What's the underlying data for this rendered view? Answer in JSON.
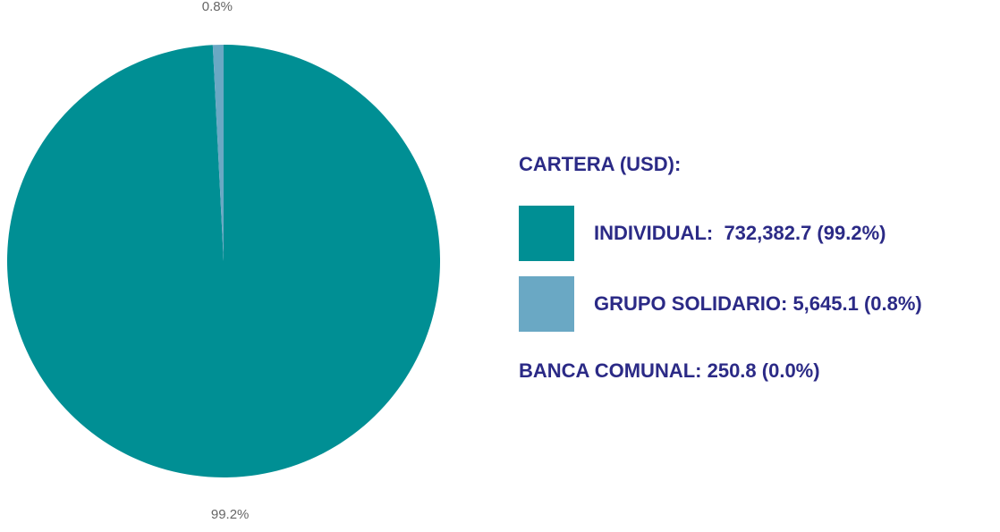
{
  "chart_data": {
    "type": "pie",
    "values": [
      99.2,
      0.8
    ],
    "value_labels": [
      "99.2%",
      "0.8%"
    ],
    "colors": [
      "#008f94",
      "#6aa8c4"
    ],
    "legend_title": "CARTERA (USD):",
    "legend": [
      "INDIVIDUAL:  732,382.7 (99.2%)",
      "GRUPO SOLIDARIO: 5,645.1 (0.8%)"
    ],
    "annotation": "BANCA COMUNAL: 250.8 (0.0%)"
  }
}
